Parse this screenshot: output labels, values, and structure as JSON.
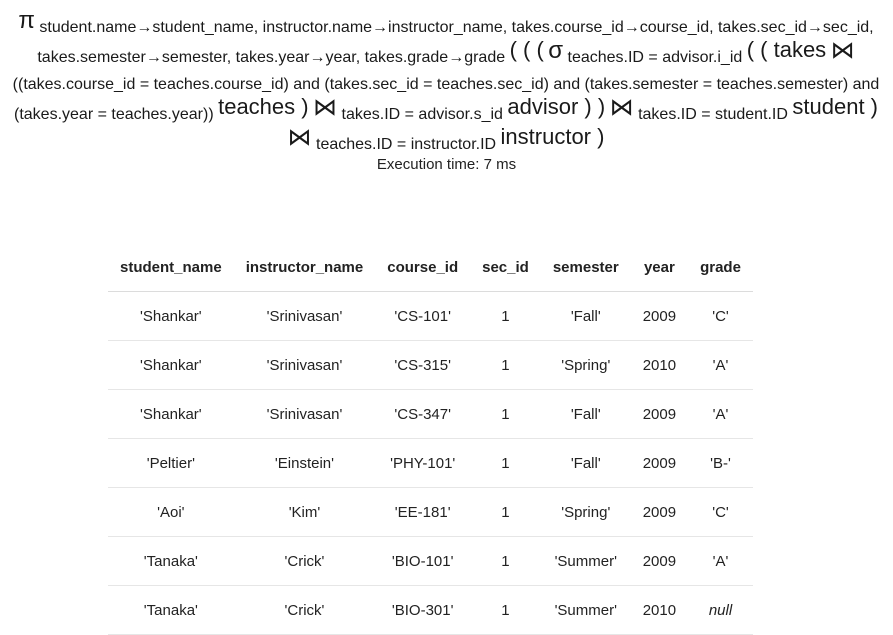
{
  "expression": {
    "projection_symbol": "π",
    "projection_list": "student.name→student_name, instructor.name→instructor_name, takes.course_id→course_id, takes.sec_id→sec_id, takes.semester→semester, takes.year→year, takes.grade→grade",
    "open_parens_1": "( ( (",
    "selection_symbol": "σ",
    "selection_condition": "teaches.ID = advisor.i_id",
    "open_parens_2": "( ( takes",
    "join_symbol": "⋈",
    "join_condition_1": "((takes.course_id = teaches.course_id) and (takes.sec_id = teaches.sec_id) and (takes.semester = teaches.semester) and (takes.year = teaches.year))",
    "relation_teaches": "teaches )",
    "join_condition_2": "takes.ID = advisor.s_id",
    "relation_advisor": "advisor ) )",
    "join_condition_3": "takes.ID = student.ID",
    "relation_student": "student )",
    "join_condition_4": "teaches.ID = instructor.ID",
    "relation_instructor": "instructor )"
  },
  "execution_time": "Execution time: 7 ms",
  "table": {
    "columns": [
      "student_name",
      "instructor_name",
      "course_id",
      "sec_id",
      "semester",
      "year",
      "grade"
    ],
    "rows": [
      [
        "'Shankar'",
        "'Srinivasan'",
        "'CS-101'",
        "1",
        "'Fall'",
        "2009",
        "'C'"
      ],
      [
        "'Shankar'",
        "'Srinivasan'",
        "'CS-315'",
        "1",
        "'Spring'",
        "2010",
        "'A'"
      ],
      [
        "'Shankar'",
        "'Srinivasan'",
        "'CS-347'",
        "1",
        "'Fall'",
        "2009",
        "'A'"
      ],
      [
        "'Peltier'",
        "'Einstein'",
        "'PHY-101'",
        "1",
        "'Fall'",
        "2009",
        "'B-'"
      ],
      [
        "'Aoi'",
        "'Kim'",
        "'EE-181'",
        "1",
        "'Spring'",
        "2009",
        "'C'"
      ],
      [
        "'Tanaka'",
        "'Crick'",
        "'BIO-101'",
        "1",
        "'Summer'",
        "2009",
        "'A'"
      ],
      [
        "'Tanaka'",
        "'Crick'",
        "'BIO-301'",
        "1",
        "'Summer'",
        "2010",
        "null"
      ]
    ]
  }
}
